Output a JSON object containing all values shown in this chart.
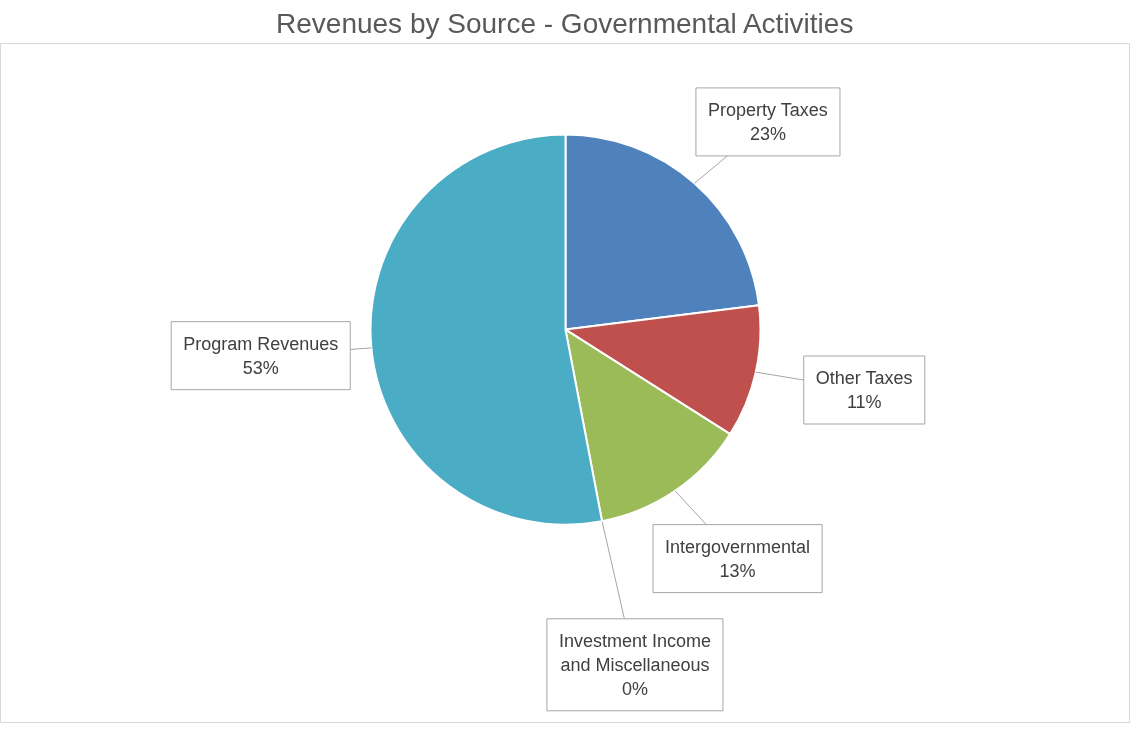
{
  "chart_data": {
    "type": "pie",
    "title": "Revenues by Source - Governmental Activities",
    "categories": [
      "Property Taxes",
      "Other Taxes",
      "Intergovernmental",
      "Investment Income and Miscellaneous",
      "Program Revenues"
    ],
    "values": [
      23,
      11,
      13,
      0,
      53
    ],
    "value_labels": [
      "23%",
      "11%",
      "13%",
      "0%",
      "53%"
    ],
    "colors": [
      "#4f81bd",
      "#c0504d",
      "#9bbb59",
      "#8064a2",
      "#4bacc6"
    ]
  }
}
